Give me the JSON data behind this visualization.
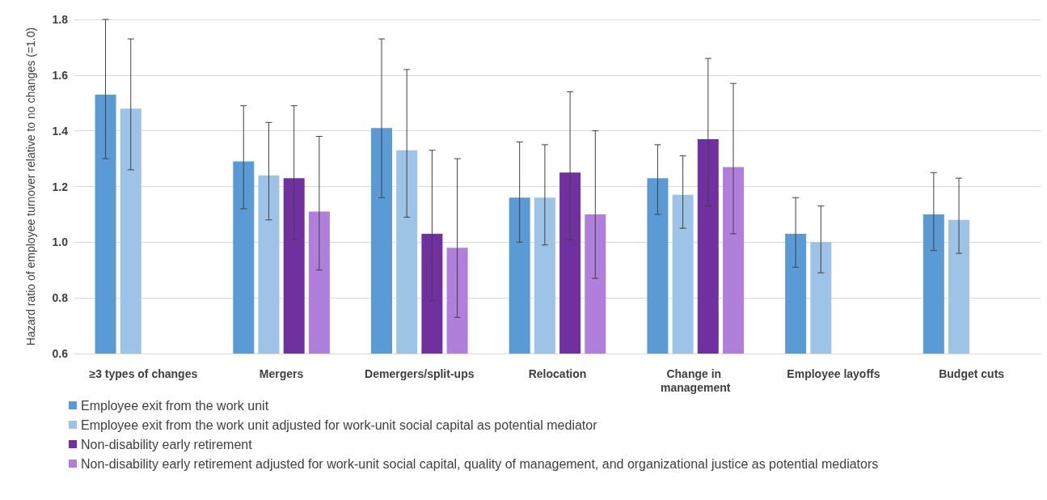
{
  "chart_data": {
    "type": "bar",
    "ylabel": "Hazard ratio of employee turnover relative to no changes (=1.0)",
    "categories": [
      "≥3 types of changes",
      "Mergers",
      "Demergers/split-ups",
      "Relocation",
      "Change in management",
      "Employee layoffs",
      "Budget cuts"
    ],
    "series": [
      {
        "name": "Employee exit from the work unit",
        "color": "#5b9bd5",
        "values": [
          1.53,
          1.29,
          1.41,
          1.16,
          1.23,
          1.03,
          1.1
        ],
        "errors": [
          [
            1.3,
            1.8
          ],
          [
            1.12,
            1.49
          ],
          [
            1.16,
            1.73
          ],
          [
            1.0,
            1.36
          ],
          [
            1.1,
            1.35
          ],
          [
            0.91,
            1.16
          ],
          [
            0.97,
            1.25
          ]
        ]
      },
      {
        "name": "Employee exit from the work unit adjusted for work-unit social capital as potential mediator",
        "color": "#9dc3e6",
        "values": [
          1.48,
          1.24,
          1.33,
          1.16,
          1.17,
          1.0,
          1.08
        ],
        "errors": [
          [
            1.26,
            1.73
          ],
          [
            1.08,
            1.43
          ],
          [
            1.09,
            1.62
          ],
          [
            0.99,
            1.35
          ],
          [
            1.05,
            1.31
          ],
          [
            0.89,
            1.13
          ],
          [
            0.96,
            1.23
          ]
        ]
      },
      {
        "name": "Non-disability early retirement",
        "color": "#7030a0",
        "values": [
          null,
          1.23,
          1.03,
          1.25,
          1.37,
          null,
          null
        ],
        "errors": [
          null,
          [
            1.01,
            1.49
          ],
          [
            0.79,
            1.33
          ],
          [
            1.01,
            1.54
          ],
          [
            1.13,
            1.66
          ],
          null,
          null
        ]
      },
      {
        "name": "Non-disability early retirement adjusted for work-unit social capital, quality of management, and organizational justice as potential mediators",
        "color": "#b07fdb",
        "values": [
          null,
          1.11,
          0.98,
          1.1,
          1.27,
          null,
          null
        ],
        "errors": [
          null,
          [
            0.9,
            1.38
          ],
          [
            0.73,
            1.3
          ],
          [
            0.87,
            1.4
          ],
          [
            1.03,
            1.57
          ],
          null,
          null
        ]
      }
    ],
    "ylim": [
      0.6,
      1.8
    ],
    "yticks": [
      0.6,
      0.8,
      {
        "value": 1,
        "label": "1.0"
      },
      1.2,
      1.4,
      1.6,
      1.8
    ],
    "grid": "y",
    "legend": "bottom"
  }
}
